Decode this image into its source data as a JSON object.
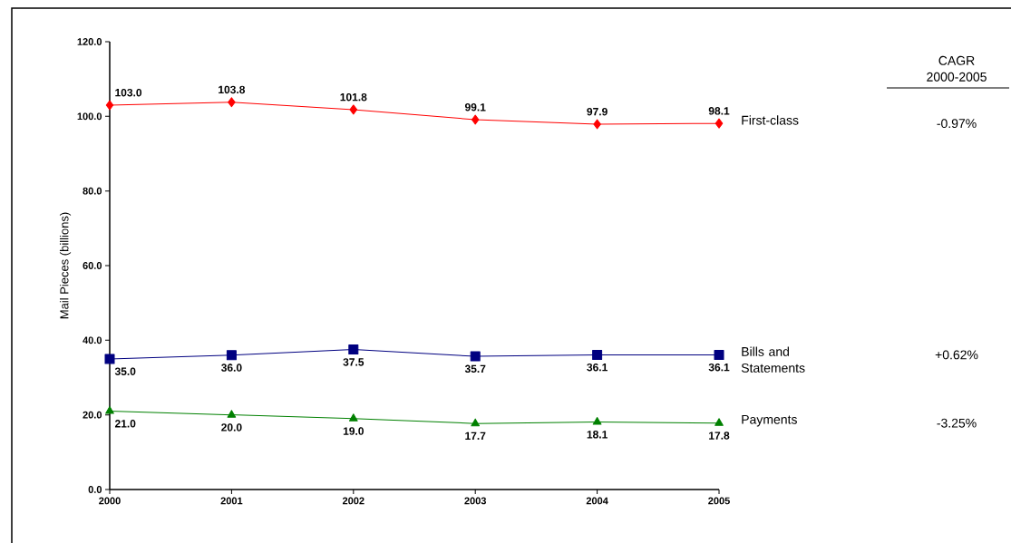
{
  "chart_data": {
    "type": "line",
    "ylabel": "Mail Pieces (billions)",
    "x": [
      2000,
      2001,
      2002,
      2003,
      2004,
      2005
    ],
    "series": [
      {
        "name": "First-class",
        "color": "#ff0000",
        "marker": "diamond",
        "values": [
          103.0,
          103.8,
          101.8,
          99.1,
          97.9,
          98.1
        ],
        "value_labels": [
          "103.0",
          "103.8",
          "101.8",
          "99.1",
          "97.9",
          "98.1"
        ]
      },
      {
        "name": "Bills and Statements",
        "color": "#000080",
        "marker": "square",
        "values": [
          35.0,
          36.0,
          37.5,
          35.7,
          36.1,
          36.1
        ],
        "value_labels": [
          "35.0",
          "36.0",
          "37.5",
          "35.7",
          "36.1",
          "36.1"
        ]
      },
      {
        "name": "Payments",
        "color": "#008000",
        "marker": "triangle",
        "values": [
          21.0,
          20.0,
          19.0,
          17.7,
          18.1,
          17.8
        ],
        "value_labels": [
          "21.0",
          "20.0",
          "19.0",
          "17.7",
          "18.1",
          "17.8"
        ]
      }
    ],
    "xlim": [
      2000,
      2005
    ],
    "xticks": [
      2000,
      2001,
      2002,
      2003,
      2004,
      2005
    ],
    "ylim": [
      0,
      120
    ],
    "yticks": [
      {
        "value": 0,
        "label": "0.0"
      },
      {
        "value": 20,
        "label": "20.0"
      },
      {
        "value": 40,
        "label": "40.0"
      },
      {
        "value": 60,
        "label": "60.0"
      },
      {
        "value": 80,
        "label": "80.0"
      },
      {
        "value": 100,
        "label": "100.0"
      },
      {
        "value": 120,
        "label": "120.0"
      }
    ],
    "grid": false,
    "line_style": "solid",
    "annotations": [
      "CAGR 2000-2005",
      "-0.97%",
      "+0.62%",
      "-3.25%"
    ]
  }
}
